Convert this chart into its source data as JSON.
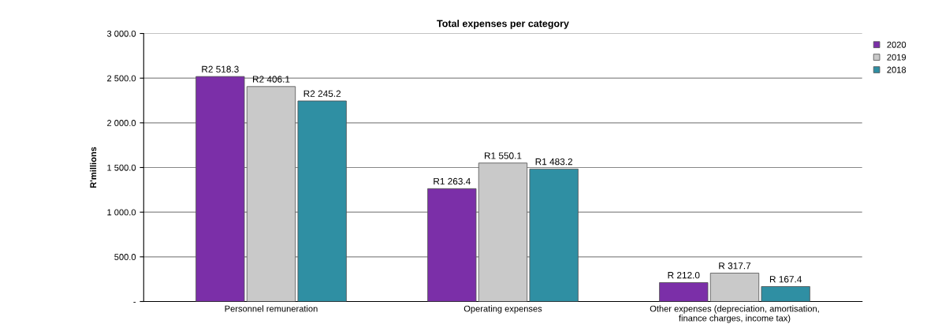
{
  "chart_data": {
    "type": "bar",
    "title": "Total expenses per category",
    "ylabel": "R'millions",
    "categories": [
      "Personnel remuneration",
      "Operating expenses",
      "Other expenses (depreciation, amortisation,\nfinance charges, income tax)"
    ],
    "series": [
      {
        "name": "2020",
        "color": "#7b2fa8",
        "values": [
          2518.3,
          1263.4,
          212.0
        ],
        "value_labels": [
          "R2 518.3",
          "R1 263.4",
          "R 212.0"
        ]
      },
      {
        "name": "2019",
        "color": "#c9c9c9",
        "values": [
          2406.1,
          1550.1,
          317.7
        ],
        "value_labels": [
          "R2 406.1",
          "R1 550.1",
          "R 317.7"
        ]
      },
      {
        "name": "2018",
        "color": "#2f8fa3",
        "values": [
          2245.2,
          1483.2,
          167.4
        ],
        "value_labels": [
          "R2 245.2",
          "R1 483.2",
          "R 167.4"
        ]
      }
    ],
    "ylim": [
      0,
      3000
    ],
    "yticks": [
      {
        "value": 0,
        "label": "-"
      },
      {
        "value": 500,
        "label": "500.0"
      },
      {
        "value": 1000,
        "label": "1 000.0"
      },
      {
        "value": 1500,
        "label": "1 500.0"
      },
      {
        "value": 2000,
        "label": "2 000.0"
      },
      {
        "value": 2500,
        "label": "2 500.0"
      },
      {
        "value": 3000,
        "label": "3 000.0"
      }
    ],
    "grid": "y",
    "legend": "top right"
  }
}
